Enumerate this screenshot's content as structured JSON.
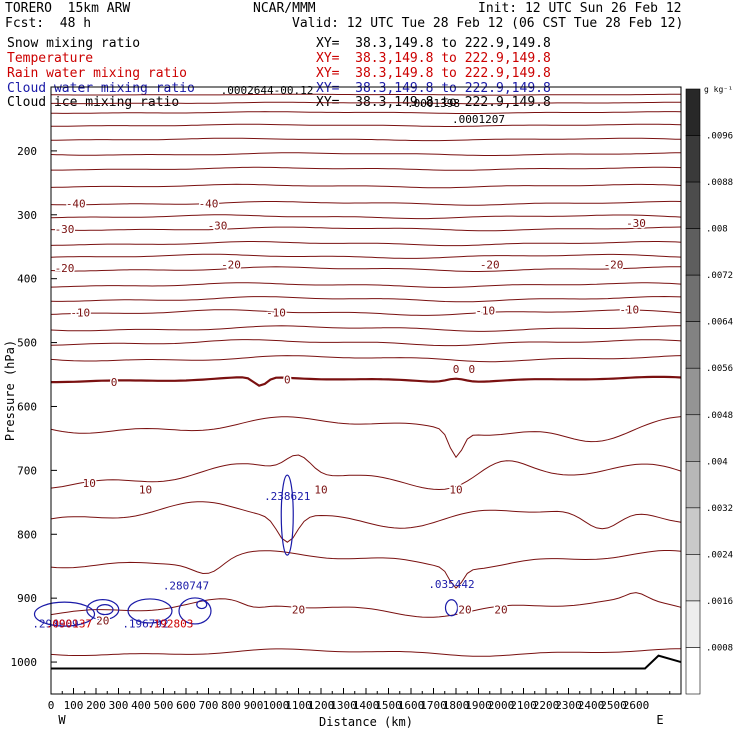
{
  "header": {
    "model": "TORERO  15km ARW",
    "center": "NCAR/MMM",
    "init": "Init: 12 UTC Sun 26 Feb 12",
    "fcst": "Fcst:  48 h",
    "valid": "Valid: 12 UTC Tue 28 Feb 12 (06 CST Tue 28 Feb 12)"
  },
  "fields": [
    {
      "name": "Snow mixing ratio",
      "xy": "XY=  38.3,149.8 to 222.9,149.8",
      "color": "#000000"
    },
    {
      "name": "Temperature",
      "xy": "XY=  38.3,149.8 to 222.9,149.8",
      "color": "#cc0000"
    },
    {
      "name": "Rain water mixing ratio",
      "xy": "XY=  38.3,149.8 to 222.9,149.8",
      "color": "#cc0000"
    },
    {
      "name": "Cloud water mixing ratio",
      "xy": "XY=  38.3,149.8 to 222.9,149.8",
      "color": "#1a1aa8"
    },
    {
      "name": "Cloud ice mixing ratio",
      "xy": "XY=  38.3,149.8 to 222.9,149.8",
      "color": "#000000"
    }
  ],
  "chart_data": {
    "type": "contour cross-section",
    "xlabel": "Distance (km)",
    "ylabel": "Pressure (hPa)",
    "xlim": [
      0,
      2800
    ],
    "ylim": [
      1050,
      100
    ],
    "x_ticks": [
      0,
      100,
      200,
      300,
      400,
      500,
      600,
      700,
      800,
      900,
      1000,
      1100,
      1200,
      1300,
      1400,
      1500,
      1600,
      1700,
      1800,
      1900,
      2000,
      2100,
      2200,
      2300,
      2400,
      2500,
      2600
    ],
    "y_ticks": [
      200,
      300,
      400,
      500,
      600,
      700,
      800,
      900,
      1000
    ],
    "left_end": "W",
    "right_end": "E",
    "colorbar": {
      "unit": "g kg⁻¹",
      "ticks": [
        ".0096",
        ".0088",
        ".008",
        ".0072",
        ".0064",
        ".0056",
        ".0048",
        ".004",
        ".0032",
        ".0024",
        ".0016",
        ".0008"
      ]
    },
    "temperature_contour_labels": [
      {
        "x": 110,
        "p": 282,
        "text": "-40"
      },
      {
        "x": 700,
        "p": 282,
        "text": "-40"
      },
      {
        "x": 60,
        "p": 322,
        "text": "-30"
      },
      {
        "x": 740,
        "p": 317,
        "text": "-30"
      },
      {
        "x": 2600,
        "p": 313,
        "text": "-30"
      },
      {
        "x": 60,
        "p": 383,
        "text": "-20"
      },
      {
        "x": 800,
        "p": 378,
        "text": "-20"
      },
      {
        "x": 1950,
        "p": 378,
        "text": "-20"
      },
      {
        "x": 2500,
        "p": 378,
        "text": "-20"
      },
      {
        "x": 130,
        "p": 453,
        "text": "-10"
      },
      {
        "x": 1000,
        "p": 453,
        "text": "-10"
      },
      {
        "x": 1930,
        "p": 450,
        "text": "-10"
      },
      {
        "x": 2570,
        "p": 448,
        "text": "-10"
      },
      {
        "x": 280,
        "p": 562,
        "text": "0"
      },
      {
        "x": 1050,
        "p": 558,
        "text": "0"
      },
      {
        "x": 1800,
        "p": 541,
        "text": "0"
      },
      {
        "x": 1870,
        "p": 541,
        "text": "0"
      },
      {
        "x": 170,
        "p": 720,
        "text": "10"
      },
      {
        "x": 420,
        "p": 730,
        "text": "10"
      },
      {
        "x": 1200,
        "p": 730,
        "text": "10"
      },
      {
        "x": 1800,
        "p": 730,
        "text": "10"
      },
      {
        "x": 230,
        "p": 935,
        "text": "20"
      },
      {
        "x": 1100,
        "p": 918,
        "text": "20"
      },
      {
        "x": 1840,
        "p": 918,
        "text": "20"
      },
      {
        "x": 2000,
        "p": 918,
        "text": "20"
      }
    ],
    "isotherm_levels": [
      "-40",
      "-30",
      "-20",
      "-10",
      "0",
      "10",
      "20"
    ],
    "maxima_labels": [
      {
        "x": 1050,
        "p": 740,
        "text": ".238621",
        "color": "#1a1aa8"
      },
      {
        "x": 600,
        "p": 880,
        "text": ".280747",
        "color": "#1a1aa8"
      },
      {
        "x": 1780,
        "p": 878,
        "text": ".035442",
        "color": "#1a1aa8"
      },
      {
        "x": 420,
        "p": 940,
        "text": ".196792",
        "color": "#1a1aa8"
      },
      {
        "x": 530,
        "p": 940,
        "text": ".192803",
        "color": "#cc0000"
      },
      {
        "x": 20,
        "p": 940,
        "text": ".294009",
        "color": "#1a1aa8"
      },
      {
        "x": 80,
        "p": 940,
        "text": ".090137",
        "color": "#cc0000"
      },
      {
        "x": 1900,
        "p": 150,
        "text": ".0001207",
        "color": "#000000"
      },
      {
        "x": 1700,
        "p": 125,
        "text": ".0001398",
        "color": "#000000"
      },
      {
        "x": 960,
        "p": 105,
        "text": ".0002644-00.12",
        "color": "#000000"
      }
    ]
  }
}
